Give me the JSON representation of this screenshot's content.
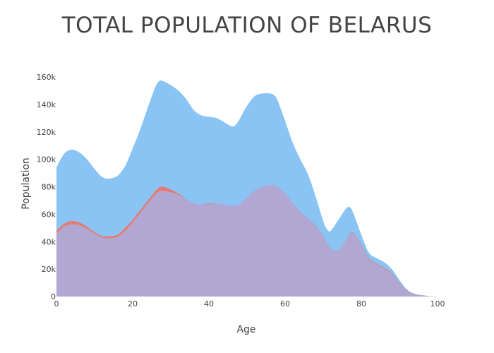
{
  "chart_data": {
    "type": "area",
    "title": "TOTAL POPULATION OF BELARUS",
    "xlabel": "Age",
    "ylabel": "Population",
    "xlim": [
      0,
      100
    ],
    "ylim": [
      0,
      160000
    ],
    "xticks": [
      0,
      20,
      40,
      60,
      80,
      100
    ],
    "xtick_labels": [
      "0",
      "20",
      "40",
      "60",
      "80",
      "100"
    ],
    "yticks": [
      0,
      20000,
      40000,
      60000,
      80000,
      100000,
      120000,
      140000,
      160000
    ],
    "ytick_labels": [
      "0",
      "20k",
      "40k",
      "60k",
      "80k",
      "100k",
      "120k",
      "140k",
      "160k"
    ],
    "grid": false,
    "legend": "none",
    "series": [
      {
        "color": "#89c4f4",
        "x": [
          0,
          2,
          4,
          6,
          8,
          10,
          12,
          14,
          16,
          18,
          20,
          22,
          24,
          26,
          27,
          28,
          30,
          32,
          34,
          36,
          38,
          40,
          42,
          44,
          46,
          47,
          48,
          50,
          52,
          54,
          56,
          57,
          58,
          60,
          62,
          64,
          66,
          68,
          70,
          71,
          72,
          74,
          76,
          77,
          78,
          80,
          82,
          84,
          86,
          88,
          90,
          92,
          94,
          96,
          98,
          100
        ],
        "values": [
          94000,
          104000,
          107000,
          105000,
          100000,
          93000,
          87000,
          86000,
          88000,
          95000,
          108000,
          122000,
          138000,
          153000,
          157000,
          157000,
          154000,
          150000,
          144000,
          136000,
          132000,
          131000,
          130000,
          127000,
          124000,
          125000,
          129000,
          139000,
          146000,
          148000,
          148000,
          147000,
          143000,
          128000,
          112000,
          100000,
          89000,
          73000,
          55000,
          49000,
          48000,
          56000,
          64000,
          65000,
          60000,
          45000,
          32000,
          28000,
          25000,
          20000,
          12000,
          5000,
          2000,
          1000,
          300,
          0
        ]
      },
      {
        "color": "#e67b73",
        "x": [
          0,
          2,
          4,
          6,
          8,
          10,
          12,
          14,
          16,
          18,
          20,
          22,
          24,
          26,
          27,
          28,
          30,
          32,
          34,
          36,
          38,
          40,
          42,
          44,
          46,
          48,
          50,
          52,
          54,
          56,
          57,
          58,
          60,
          62,
          64,
          66,
          68,
          70,
          72,
          74,
          76,
          77,
          78,
          80,
          82,
          84,
          86,
          88,
          90,
          92,
          94,
          96,
          98,
          100
        ],
        "values": [
          48000,
          53000,
          55000,
          54000,
          51000,
          47000,
          44000,
          44000,
          45000,
          50000,
          56000,
          63000,
          70000,
          77000,
          79500,
          80000,
          78000,
          75000,
          71000,
          68000,
          67000,
          68000,
          68000,
          67000,
          66000,
          67000,
          72000,
          77000,
          80000,
          81000,
          81000,
          80000,
          75000,
          68000,
          62000,
          57000,
          52000,
          44000,
          35000,
          34000,
          41000,
          46000,
          46000,
          38000,
          28000,
          24000,
          21000,
          17000,
          10000,
          4500,
          1600,
          700,
          200,
          0
        ]
      },
      {
        "color": "#b0a8d2",
        "x": [
          0,
          2,
          4,
          6,
          8,
          10,
          12,
          14,
          16,
          18,
          20,
          22,
          24,
          26,
          27,
          28,
          30,
          32,
          34,
          36,
          38,
          40,
          42,
          44,
          46,
          48,
          50,
          52,
          54,
          56,
          57,
          58,
          60,
          62,
          64,
          66,
          68,
          70,
          72,
          74,
          76,
          77,
          78,
          80,
          82,
          84,
          86,
          88,
          90,
          92,
          94,
          96,
          98,
          100
        ],
        "values": [
          46000,
          51000,
          52500,
          52000,
          49500,
          46000,
          43000,
          42500,
          43500,
          47500,
          54000,
          61000,
          68000,
          74500,
          76500,
          77000,
          76000,
          74000,
          71000,
          68000,
          67000,
          67500,
          68000,
          67000,
          66000,
          67000,
          72000,
          77000,
          80000,
          81000,
          81000,
          80000,
          75000,
          68000,
          62000,
          57000,
          52000,
          44000,
          35000,
          34000,
          41000,
          45500,
          45500,
          37500,
          27500,
          23500,
          20500,
          16500,
          9500,
          4300,
          1500,
          600,
          200,
          0
        ]
      }
    ]
  }
}
